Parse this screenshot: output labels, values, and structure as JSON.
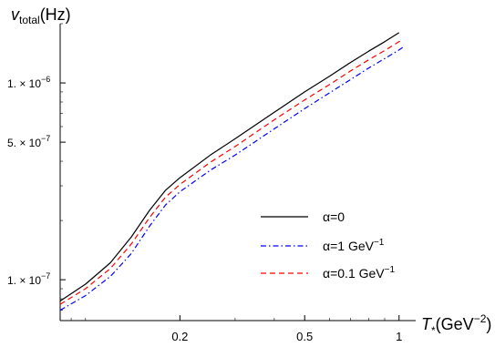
{
  "chart_data": {
    "type": "line",
    "title": "",
    "xlabel": {
      "var": "T",
      "sub": "*",
      "unit_pre": "(GeV",
      "unit_sup": "−2",
      "unit_post": ")"
    },
    "ylabel": {
      "var": "v",
      "sub": "total",
      "unit": "(Hz)"
    },
    "x_scale": "log",
    "y_scale": "log",
    "xlim": [
      0.083,
      1.13
    ],
    "ylim": [
      6.2e-08,
      2e-06
    ],
    "x_ticks": [
      {
        "value": 0.2,
        "label": "0.2"
      },
      {
        "value": 0.5,
        "label": "0.5"
      },
      {
        "value": 1,
        "label": "1"
      }
    ],
    "y_ticks": [
      {
        "value": 1e-07,
        "mant": "1. × 10",
        "exp": "−7"
      },
      {
        "value": 5e-07,
        "mant": "5. × 10",
        "exp": "−7"
      },
      {
        "value": 1e-06,
        "mant": "1. × 10",
        "exp": "−6"
      }
    ],
    "grid": false,
    "legend_position": "middle-right",
    "series": [
      {
        "name_pre": "α=0",
        "name_sup": "",
        "color": "#000000",
        "dash": "",
        "x": [
          0.083,
          0.1,
          0.12,
          0.14,
          0.16,
          0.18,
          0.2,
          0.25,
          0.3,
          0.4,
          0.5,
          0.6,
          0.7,
          0.8,
          0.9,
          1.0
        ],
        "y": [
          7.8e-08,
          9.5e-08,
          1.22e-07,
          1.65e-07,
          2.25e-07,
          2.85e-07,
          3.3e-07,
          4.3e-07,
          5.2e-07,
          7.1e-07,
          9e-07,
          1.08e-06,
          1.27e-06,
          1.45e-06,
          1.62e-06,
          1.8e-06
        ]
      },
      {
        "name_pre": "α=1 GeV",
        "name_sup": "−1",
        "color": "#0000ff",
        "dash": "6,3,1.5,3",
        "x": [
          0.083,
          0.1,
          0.12,
          0.14,
          0.16,
          0.18,
          0.2,
          0.25,
          0.3,
          0.4,
          0.5,
          0.6,
          0.7,
          0.8,
          0.9,
          1.0,
          1.03
        ],
        "y": [
          7e-08,
          8.3e-08,
          1.04e-07,
          1.36e-07,
          1.87e-07,
          2.4e-07,
          2.8e-07,
          3.6e-07,
          4.3e-07,
          5.85e-07,
          7.4e-07,
          8.9e-07,
          1.04e-06,
          1.19e-06,
          1.33e-06,
          1.47e-06,
          1.52e-06
        ]
      },
      {
        "name_pre": "α=0.1 GeV",
        "name_sup": "−1",
        "color": "#ff0000",
        "dash": "6,4",
        "x": [
          0.083,
          0.1,
          0.12,
          0.14,
          0.16,
          0.18,
          0.2,
          0.25,
          0.3,
          0.4,
          0.5,
          0.6,
          0.7,
          0.8,
          0.9,
          1.0,
          1.03
        ],
        "y": [
          7.5e-08,
          9e-08,
          1.14e-07,
          1.52e-07,
          2.07e-07,
          2.63e-07,
          3.05e-07,
          3.95e-07,
          4.75e-07,
          6.5e-07,
          8.2e-07,
          9.8e-07,
          1.15e-06,
          1.31e-06,
          1.46e-06,
          1.62e-06,
          1.66e-06
        ]
      }
    ]
  }
}
